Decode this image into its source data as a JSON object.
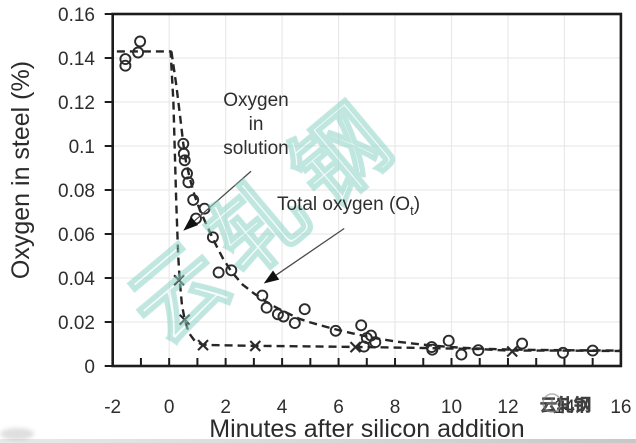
{
  "figure": {
    "x_axis_title": "Minutes after silicon addition",
    "y_axis_title": "Oxygen in steel (%)"
  },
  "labels": {
    "solution": {
      "line1": "Oxygen",
      "line2": "in",
      "line3": "solution"
    },
    "total": {
      "prefix": "Total oxygen (O",
      "sub": "t",
      "suffix": ")"
    }
  },
  "watermark": {
    "center_text": "云轧钢",
    "corner_text": "云轧钢"
  },
  "colors": {
    "curve": "#262626",
    "marker": "#2b2b2b",
    "grid": "#e9e9e9",
    "border": "#1c1c1c",
    "arrow_line": "#4a4a4a",
    "arrow_head": "#111111",
    "watermark_teal": "#8fd2c5"
  },
  "chart_data": {
    "type": "scatter",
    "title": "",
    "xlabel": "Minutes after silicon addition",
    "ylabel": "Oxygen in steel (%)",
    "xlim": [
      -2,
      16
    ],
    "ylim": [
      0,
      0.16
    ],
    "grid": true,
    "x_ticks": [
      -2,
      0,
      2,
      4,
      6,
      8,
      10,
      12,
      14,
      16
    ],
    "x_tick_labels": [
      "-2",
      "0",
      "2",
      "4",
      "6",
      "8",
      "10",
      "12",
      "14",
      "16"
    ],
    "x_minor_tick_step": 1,
    "y_ticks": [
      0,
      0.02,
      0.04,
      0.06,
      0.08,
      0.1,
      0.12,
      0.14,
      0.16
    ],
    "y_tick_labels": [
      "0",
      "0.02",
      "0.04",
      "0.06",
      "0.08",
      "0.1",
      "0.12",
      "0.14",
      "0.16"
    ],
    "series": [
      {
        "name": "Total oxygen (Ot)",
        "marker": "circle",
        "line": "dashed",
        "points": [
          [
            -1.55,
            0.1395
          ],
          [
            -1.55,
            0.1365
          ],
          [
            -1.1,
            0.1425
          ],
          [
            -1.03,
            0.1475
          ],
          [
            0.5,
            0.101
          ],
          [
            0.52,
            0.0965
          ],
          [
            0.55,
            0.0935
          ],
          [
            0.63,
            0.0875
          ],
          [
            0.68,
            0.0835
          ],
          [
            0.85,
            0.0755
          ],
          [
            0.95,
            0.067
          ],
          [
            1.25,
            0.0715
          ],
          [
            1.55,
            0.0585
          ],
          [
            1.75,
            0.0425
          ],
          [
            2.2,
            0.0435
          ],
          [
            3.3,
            0.032
          ],
          [
            3.45,
            0.0265
          ],
          [
            3.85,
            0.0235
          ],
          [
            4.05,
            0.0225
          ],
          [
            4.45,
            0.0195
          ],
          [
            4.8,
            0.0258
          ],
          [
            5.9,
            0.016
          ],
          [
            6.8,
            0.0185
          ],
          [
            6.9,
            0.0088
          ],
          [
            7.0,
            0.0127
          ],
          [
            7.15,
            0.0138
          ],
          [
            7.3,
            0.0108
          ],
          [
            9.3,
            0.0086
          ],
          [
            9.32,
            0.0074
          ],
          [
            9.9,
            0.0115
          ],
          [
            10.35,
            0.0052
          ],
          [
            10.95,
            0.0072
          ],
          [
            12.5,
            0.0102
          ],
          [
            13.95,
            0.006
          ],
          [
            15.0,
            0.007
          ]
        ],
        "curve": [
          [
            0.08,
            0.143
          ],
          [
            0.25,
            0.128
          ],
          [
            0.4,
            0.112
          ],
          [
            0.5,
            0.101
          ],
          [
            0.6,
            0.0925
          ],
          [
            0.75,
            0.0845
          ],
          [
            0.9,
            0.0775
          ],
          [
            1.1,
            0.0705
          ],
          [
            1.35,
            0.0635
          ],
          [
            1.6,
            0.0565
          ],
          [
            1.9,
            0.049
          ],
          [
            2.2,
            0.043
          ],
          [
            2.6,
            0.037
          ],
          [
            3.0,
            0.033
          ],
          [
            3.4,
            0.0295
          ],
          [
            3.8,
            0.0265
          ],
          [
            4.2,
            0.024
          ],
          [
            4.6,
            0.0215
          ],
          [
            5.0,
            0.0198
          ],
          [
            5.5,
            0.018
          ],
          [
            6.0,
            0.0163
          ],
          [
            6.5,
            0.0148
          ],
          [
            7.0,
            0.0134
          ],
          [
            7.5,
            0.0122
          ],
          [
            8.0,
            0.0112
          ],
          [
            8.5,
            0.0104
          ],
          [
            9.0,
            0.0097
          ],
          [
            9.5,
            0.0091
          ],
          [
            10.0,
            0.0086
          ],
          [
            10.5,
            0.0082
          ],
          [
            11.0,
            0.0079
          ],
          [
            11.5,
            0.0077
          ],
          [
            12.0,
            0.0075
          ],
          [
            13.0,
            0.0073
          ],
          [
            14.0,
            0.0072
          ],
          [
            15.0,
            0.0071
          ],
          [
            16.0,
            0.007
          ]
        ]
      },
      {
        "name": "Oxygen in solution",
        "marker": "x",
        "line": "dashed",
        "points": [
          [
            0.35,
            0.039
          ],
          [
            0.55,
            0.021
          ],
          [
            1.2,
            0.0095
          ],
          [
            3.05,
            0.0091
          ],
          [
            6.6,
            0.0086
          ],
          [
            12.15,
            0.0066
          ]
        ],
        "curve": [
          [
            -1.85,
            0.143
          ],
          [
            0.05,
            0.143
          ],
          [
            0.15,
            0.12
          ],
          [
            0.25,
            0.075
          ],
          [
            0.32,
            0.05
          ],
          [
            0.38,
            0.038
          ],
          [
            0.45,
            0.028
          ],
          [
            0.55,
            0.021
          ],
          [
            0.7,
            0.015
          ],
          [
            0.9,
            0.0115
          ],
          [
            1.15,
            0.0098
          ],
          [
            1.5,
            0.0095
          ],
          [
            3.0,
            0.0092
          ],
          [
            5.0,
            0.0089
          ],
          [
            7.0,
            0.0086
          ],
          [
            9.0,
            0.0082
          ],
          [
            11.0,
            0.0077
          ],
          [
            12.0,
            0.007
          ],
          [
            14.0,
            0.007
          ],
          [
            16.0,
            0.0068
          ]
        ]
      }
    ],
    "annotations": [
      {
        "text": "Oxygen in solution",
        "arrow_from": [
          2.9,
          0.0885
        ],
        "arrow_to": [
          0.5,
          0.0615
        ]
      },
      {
        "text": "Total oxygen (Ot)",
        "arrow_from": [
          6.2,
          0.0625
        ],
        "arrow_to": [
          3.35,
          0.0375
        ]
      }
    ],
    "legend": "none"
  }
}
